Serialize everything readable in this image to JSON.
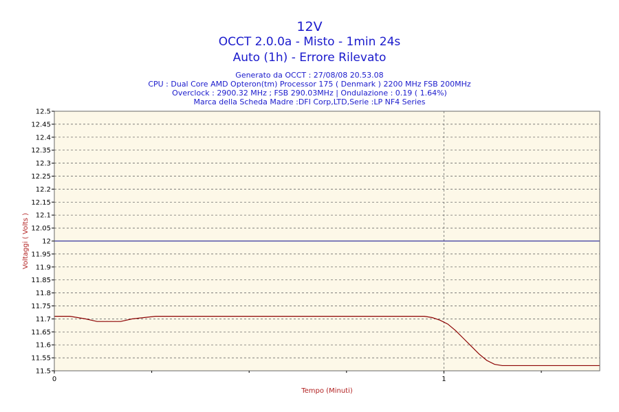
{
  "chart_data": {
    "type": "line",
    "title": "12V",
    "subtitle_lines": [
      "OCCT 2.0.0a - Misto - 1min 24s",
      "Auto (1h) - Errore Rilevato"
    ],
    "info_lines": [
      "Generato da OCCT : 27/08/08 20.53.08",
      "CPU : Dual Core AMD Opteron(tm) Processor 175  ( Denmark ) 2200 MHz FSB 200MHz",
      "Overclock : 2900.32 MHz ; FSB 290.03MHz | Ondulazione : 0.19 ( 1.64%)",
      "Marca della Scheda Madre :DFI Corp,LTD,Serie :LP NF4 Series"
    ],
    "xlabel": "Tempo (Minuti)",
    "ylabel": "Voltaggi ( Volts )",
    "xlim": [
      0,
      1.4
    ],
    "ylim": [
      11.5,
      12.5
    ],
    "x_ticks": [
      0,
      1
    ],
    "x_tick_labels": [
      "0",
      "1"
    ],
    "y_ticks": [
      11.5,
      11.55,
      11.6,
      11.65,
      11.7,
      11.75,
      11.8,
      11.85,
      11.9,
      11.95,
      12,
      12.05,
      12.1,
      12.15,
      12.2,
      12.25,
      12.3,
      12.35,
      12.4,
      12.45,
      12.5
    ],
    "y_tick_labels": [
      "11.5",
      "11.55",
      "11.6",
      "11.65",
      "11.7",
      "11.75",
      "11.8",
      "11.85",
      "11.9",
      "11.95",
      "12",
      "12.05",
      "12.1",
      "12.15",
      "12.2",
      "12.25",
      "12.3",
      "12.35",
      "12.4",
      "12.45",
      "12.5"
    ],
    "grid": true,
    "reference_line": {
      "y": 12.0,
      "color": "#00008b"
    },
    "series": [
      {
        "color": "#8b0000",
        "x": [
          0,
          0.04,
          0.08,
          0.11,
          0.14,
          0.17,
          0.2,
          0.23,
          0.26,
          0.3,
          0.5,
          0.7,
          0.9,
          0.95,
          0.97,
          0.99,
          1.01,
          1.03,
          1.05,
          1.07,
          1.09,
          1.11,
          1.13,
          1.15,
          1.18,
          1.22,
          1.3,
          1.4
        ],
        "y": [
          11.71,
          11.71,
          11.7,
          11.69,
          11.69,
          11.69,
          11.7,
          11.705,
          11.71,
          11.71,
          11.71,
          11.71,
          11.71,
          11.71,
          11.705,
          11.695,
          11.68,
          11.655,
          11.625,
          11.595,
          11.565,
          11.54,
          11.525,
          11.52,
          11.52,
          11.52,
          11.52,
          11.52
        ]
      }
    ]
  },
  "colors": {
    "title": "#1a1acc",
    "plot_background": "#fdf8e8",
    "grid": "#555555",
    "axis_title": "#b22222"
  }
}
